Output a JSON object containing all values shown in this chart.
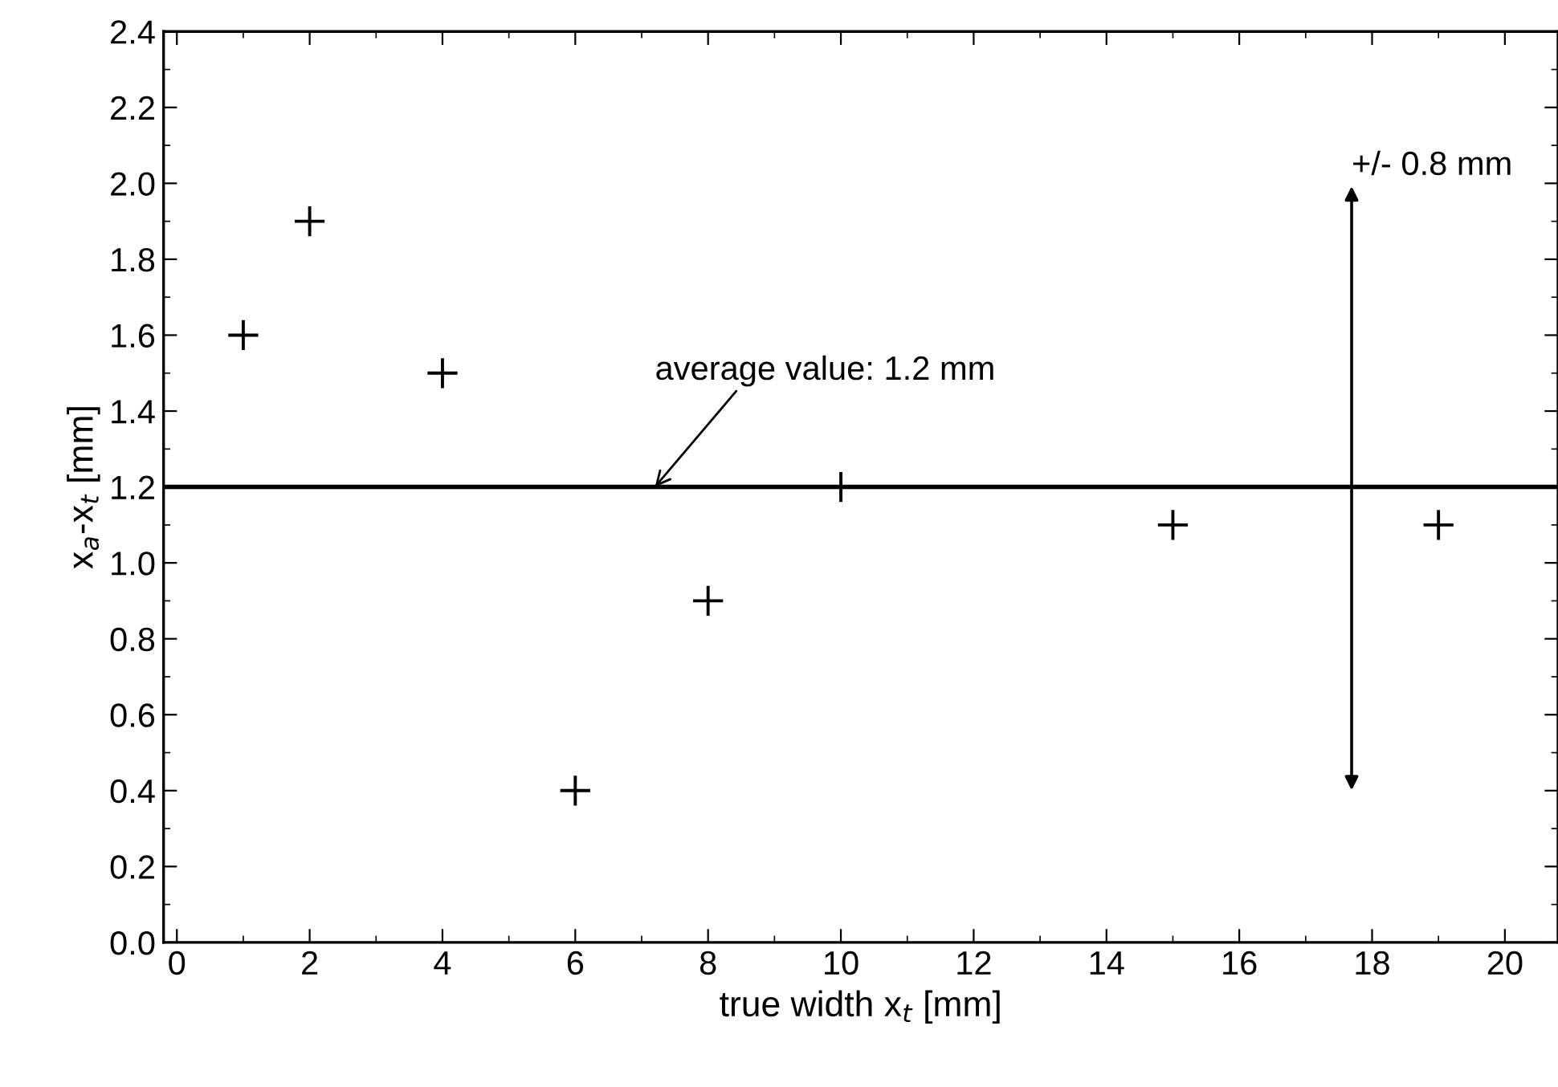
{
  "chart_data": {
    "type": "scatter",
    "xlabel": "true width x$_{t}$ [mm]",
    "ylabel": "x$_{a}$-x$_{t}$ [mm]",
    "x": [
      1,
      2,
      4,
      6,
      8,
      10,
      15,
      19
    ],
    "series": [
      {
        "color": "#000000",
        "values": [
          1.6,
          1.9,
          1.5,
          0.4,
          0.9,
          1.2,
          1.1,
          1.1
        ]
      }
    ],
    "marker": "cross",
    "xlim": [
      -0.2,
      20.8
    ],
    "xticks": [
      0,
      2,
      4,
      6,
      8,
      10,
      12,
      14,
      16,
      18,
      20
    ],
    "ylim": [
      0,
      2.4
    ],
    "yticks": [
      {
        "value": 0,
        "label": "0.0"
      },
      0.2,
      0.4,
      0.6,
      0.8,
      {
        "value": 1,
        "label": "1.0"
      },
      1.2,
      1.4,
      1.6,
      1.8,
      {
        "value": 2,
        "label": "2.0"
      },
      2.2,
      2.4
    ],
    "ref_lines": [
      {
        "axis": "y",
        "value": 1.2,
        "color": "#000000",
        "line_style": "solid"
      }
    ],
    "annotations": [
      {
        "text": "average value: 1.2 mm",
        "x": 7.2,
        "y": 1.2
      },
      "+/- 0.8 mm"
    ],
    "grid": false,
    "legend": false
  }
}
